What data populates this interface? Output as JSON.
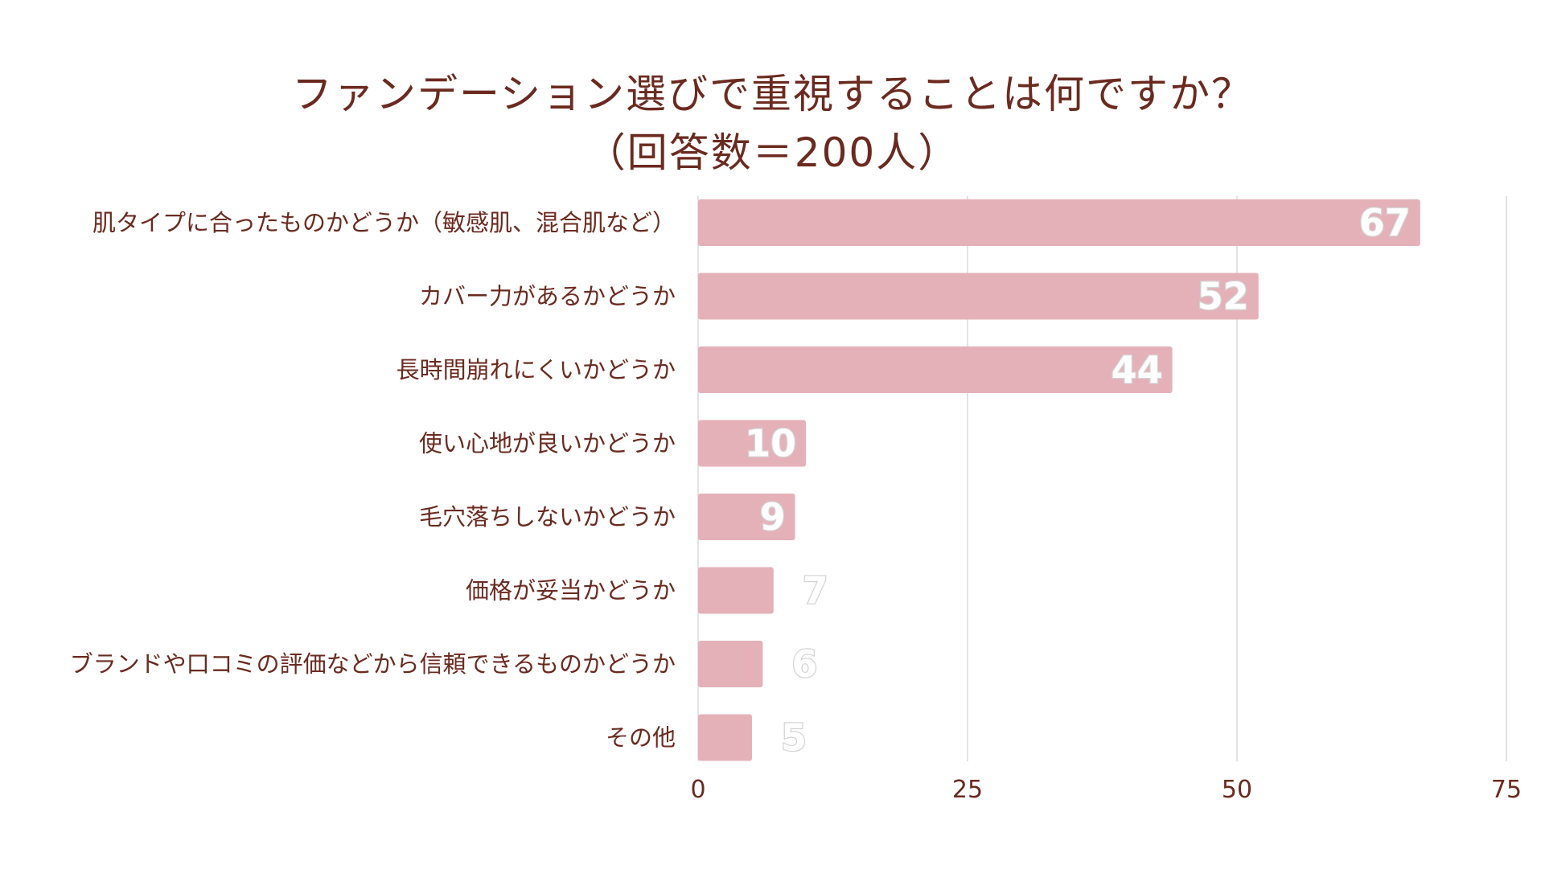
{
  "chart_data": {
    "type": "bar",
    "orientation": "horizontal",
    "title_line1": "ファンデーション選びで重視することは何ですか？",
    "title_line2": "（回答数＝200人）",
    "categories": [
      "肌タイプに合ったものかどうか（敏感肌、混合肌など）",
      "カバー力があるかどうか",
      "長時間崩れにくいかどうか",
      "使い心地が良いかどうか",
      "毛穴落ちしないかどうか",
      "価格が妥当かどうか",
      "ブランドや口コミの評価などから信頼できるものかどうか",
      "その他"
    ],
    "values": [
      67,
      52,
      44,
      10,
      9,
      7,
      6,
      5
    ],
    "data_labels": [
      "67",
      "52",
      "44",
      "10",
      "9",
      "7",
      "6",
      "5"
    ],
    "xlim": [
      0,
      75
    ],
    "x_ticks": [
      "0",
      "25",
      "50",
      "75"
    ],
    "grid": true,
    "colors": {
      "bar": "#e4b1b9",
      "text": "#6b2a1f",
      "grid": "#e3e3e3",
      "data_label_fill": "#ffffff",
      "data_label_outline": "#d4d4d4"
    }
  }
}
